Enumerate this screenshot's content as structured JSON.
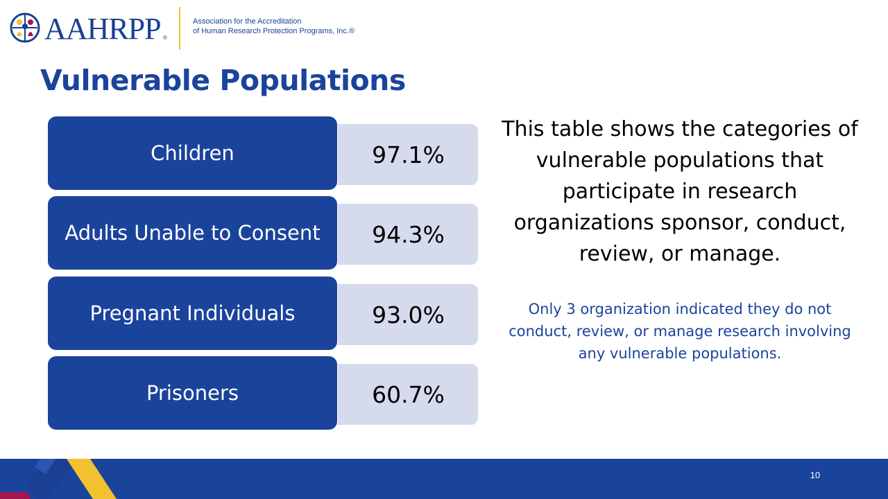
{
  "header": {
    "logo_text": "AAHRPP",
    "tagline_line1": "Association for the Accreditation",
    "tagline_line2": "of Human Research Protection Programs, Inc.®"
  },
  "slide": {
    "title": "Vulnerable Populations",
    "populations": [
      {
        "label": "Children",
        "value": "97.1%"
      },
      {
        "label": "Adults Unable to Consent",
        "value": "94.3%"
      },
      {
        "label": "Pregnant Individuals",
        "value": "93.0%"
      },
      {
        "label": "Prisoners",
        "value": "60.7%"
      }
    ],
    "description": "This table shows the categories of vulnerable populations that participate in research organizations sponsor, conduct, review, or manage.",
    "note": "Only 3 organization indicated they do not conduct, review, or manage research involving any vulnerable populations.",
    "page_number": "10"
  },
  "colors": {
    "brand_blue": "#1a439c",
    "value_box": "#d5dbec",
    "accent_yellow": "#f2c230",
    "accent_red": "#a3164f"
  },
  "icons": {
    "logo_mark": "people-globe-logo-icon",
    "footer_decoration": "chevron-stripes-icon"
  }
}
